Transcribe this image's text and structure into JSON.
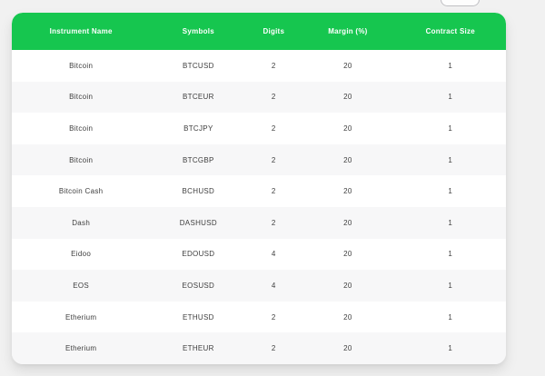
{
  "page": {
    "background": "#f1f1f1",
    "accent_green": "#16c64f",
    "row_alt_color": "#f7f7f8"
  },
  "table": {
    "columns": [
      "Instrument Name",
      "Symbols",
      "Digits",
      "Margin (%)",
      "Contract Size"
    ],
    "rows": [
      [
        "Bitcoin",
        "BTCUSD",
        "2",
        "20",
        "1"
      ],
      [
        "Bitcoin",
        "BTCEUR",
        "2",
        "20",
        "1"
      ],
      [
        "Bitcoin",
        "BTCJPY",
        "2",
        "20",
        "1"
      ],
      [
        "Bitcoin",
        "BTCGBP",
        "2",
        "20",
        "1"
      ],
      [
        "Bitcoin Cash",
        "BCHUSD",
        "2",
        "20",
        "1"
      ],
      [
        "Dash",
        "DASHUSD",
        "2",
        "20",
        "1"
      ],
      [
        "Eidoo",
        "EDOUSD",
        "4",
        "20",
        "1"
      ],
      [
        "EOS",
        "EOSUSD",
        "4",
        "20",
        "1"
      ],
      [
        "Etherium",
        "ETHUSD",
        "2",
        "20",
        "1"
      ],
      [
        "Etherium",
        "ETHEUR",
        "2",
        "20",
        "1"
      ]
    ]
  }
}
